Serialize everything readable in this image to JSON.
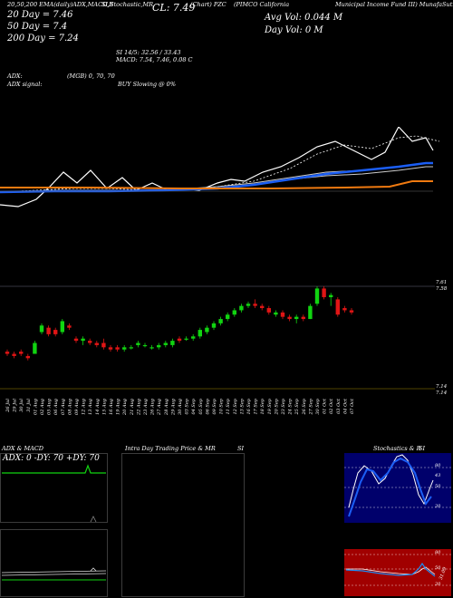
{
  "header": {
    "line1_left": "20,50,200 EMA(daily)ADX,MACD,B",
    "line1_mid": "SI,Stochastic,MR",
    "line1_cl": "CL: 7.49",
    "line1_ticker": "(Chart) PZC",
    "line1_name": "(PIMCO California",
    "line1_muni": "Municipal Income Fund III) MunafaSutra.com",
    "avg_vol": "Avg Vol: 0.044 M",
    "day_vol": "Day Vol: 0 M",
    "ema20": "20 Day = 7.46",
    "ema50": "50 Day = 7.4",
    "ema200": "200 Day = 7.24",
    "stoch_line": "SI 14/5: 32.56 / 33.43",
    "macd_line": "MACD: 7.54, 7.46, 0.08 C",
    "adx_line": "ADX:",
    "adx_values": "(MGB) 0, 70, 70",
    "adx_signal": "ADX signal:",
    "buy_signal": "BUY Slowing @ 0%"
  },
  "price_labels": {
    "top1": "7.61",
    "top2": "7.58",
    "bottom1": "7.14",
    "bottom2": "7.14"
  },
  "dates": [
    "26 Jul",
    "29 Jul",
    "30 Jul",
    "31 Jul",
    "01 Aug",
    "02 Aug",
    "05 Aug",
    "06 Aug",
    "07 Aug",
    "08 Aug",
    "09 Aug",
    "12 Aug",
    "13 Aug",
    "14 Aug",
    "15 Aug",
    "16 Aug",
    "19 Aug",
    "20 Aug",
    "21 Aug",
    "22 Aug",
    "23 Aug",
    "26 Aug",
    "27 Aug",
    "28 Aug",
    "29 Aug",
    "30 Aug",
    "03 Sep",
    "04 Sep",
    "05 Sep",
    "06 Sep",
    "09 Sep",
    "10 Sep",
    "11 Sep",
    "12 Sep",
    "13 Sep",
    "16 Sep",
    "17 Sep",
    "18 Sep",
    "19 Sep",
    "20 Sep",
    "23 Sep",
    "24 Sep",
    "25 Sep",
    "26 Sep",
    "27 Sep",
    "30 Sep",
    "01 Oct",
    "02 Oct",
    "03 Oct",
    "04 Oct",
    "07 Oct"
  ],
  "panels": {
    "adx_title": "ADX  & MACD",
    "adx_values": "ADX: 0  -DY: 70  +DY: 70",
    "mid_title": "Intra Day Trading Price  & MR",
    "mid_si": "SI",
    "stoch_title": "Stochastics & R",
    "stoch_si": "SI",
    "stoch_labels": [
      "80",
      "50",
      "20"
    ],
    "rsi_labels": [
      "80",
      "50",
      "20"
    ],
    "stoch_right": "43",
    "rsi_right": "31.09"
  },
  "colors": {
    "up": "#11d411",
    "down": "#e01515",
    "ema20": "#1b5ef5",
    "ema200": "#f07a10",
    "stoch_bg": "#00006b",
    "rsi_bg": "#a10000"
  },
  "chart_data": {
    "type": "candlestick",
    "ylim": [
      7.14,
      7.61
    ],
    "candles": [
      {
        "o": 7.31,
        "h": 7.32,
        "l": 7.29,
        "c": 7.3
      },
      {
        "o": 7.3,
        "h": 7.31,
        "l": 7.28,
        "c": 7.29
      },
      {
        "o": 7.31,
        "h": 7.32,
        "l": 7.29,
        "c": 7.3
      },
      {
        "o": 7.29,
        "h": 7.3,
        "l": 7.27,
        "c": 7.28
      },
      {
        "o": 7.3,
        "h": 7.36,
        "l": 7.3,
        "c": 7.35
      },
      {
        "o": 7.4,
        "h": 7.44,
        "l": 7.39,
        "c": 7.43
      },
      {
        "o": 7.42,
        "h": 7.43,
        "l": 7.38,
        "c": 7.39
      },
      {
        "o": 7.41,
        "h": 7.42,
        "l": 7.38,
        "c": 7.39
      },
      {
        "o": 7.4,
        "h": 7.46,
        "l": 7.39,
        "c": 7.45
      },
      {
        "o": 7.43,
        "h": 7.44,
        "l": 7.41,
        "c": 7.42
      },
      {
        "o": 7.37,
        "h": 7.38,
        "l": 7.35,
        "c": 7.36
      },
      {
        "o": 7.36,
        "h": 7.38,
        "l": 7.34,
        "c": 7.37
      },
      {
        "o": 7.36,
        "h": 7.37,
        "l": 7.34,
        "c": 7.35
      },
      {
        "o": 7.35,
        "h": 7.36,
        "l": 7.33,
        "c": 7.34
      },
      {
        "o": 7.35,
        "h": 7.37,
        "l": 7.32,
        "c": 7.33
      },
      {
        "o": 7.33,
        "h": 7.34,
        "l": 7.31,
        "c": 7.32
      },
      {
        "o": 7.33,
        "h": 7.34,
        "l": 7.31,
        "c": 7.32
      },
      {
        "o": 7.32,
        "h": 7.34,
        "l": 7.31,
        "c": 7.33
      },
      {
        "o": 7.33,
        "h": 7.34,
        "l": 7.32,
        "c": 7.33
      },
      {
        "o": 7.34,
        "h": 7.36,
        "l": 7.33,
        "c": 7.35
      },
      {
        "o": 7.34,
        "h": 7.35,
        "l": 7.33,
        "c": 7.34
      },
      {
        "o": 7.33,
        "h": 7.34,
        "l": 7.32,
        "c": 7.33
      },
      {
        "o": 7.33,
        "h": 7.35,
        "l": 7.32,
        "c": 7.34
      },
      {
        "o": 7.34,
        "h": 7.36,
        "l": 7.33,
        "c": 7.35
      },
      {
        "o": 7.34,
        "h": 7.37,
        "l": 7.33,
        "c": 7.36
      },
      {
        "o": 7.37,
        "h": 7.38,
        "l": 7.35,
        "c": 7.36
      },
      {
        "o": 7.37,
        "h": 7.38,
        "l": 7.36,
        "c": 7.37
      },
      {
        "o": 7.37,
        "h": 7.39,
        "l": 7.36,
        "c": 7.38
      },
      {
        "o": 7.38,
        "h": 7.42,
        "l": 7.37,
        "c": 7.41
      },
      {
        "o": 7.4,
        "h": 7.43,
        "l": 7.39,
        "c": 7.42
      },
      {
        "o": 7.42,
        "h": 7.45,
        "l": 7.41,
        "c": 7.44
      },
      {
        "o": 7.44,
        "h": 7.47,
        "l": 7.43,
        "c": 7.46
      },
      {
        "o": 7.46,
        "h": 7.49,
        "l": 7.45,
        "c": 7.48
      },
      {
        "o": 7.48,
        "h": 7.51,
        "l": 7.47,
        "c": 7.5
      },
      {
        "o": 7.5,
        "h": 7.53,
        "l": 7.49,
        "c": 7.52
      },
      {
        "o": 7.52,
        "h": 7.54,
        "l": 7.51,
        "c": 7.53
      },
      {
        "o": 7.53,
        "h": 7.55,
        "l": 7.51,
        "c": 7.52
      },
      {
        "o": 7.52,
        "h": 7.53,
        "l": 7.5,
        "c": 7.51
      },
      {
        "o": 7.51,
        "h": 7.52,
        "l": 7.48,
        "c": 7.49
      },
      {
        "o": 7.48,
        "h": 7.5,
        "l": 7.47,
        "c": 7.49
      },
      {
        "o": 7.49,
        "h": 7.5,
        "l": 7.46,
        "c": 7.47
      },
      {
        "o": 7.47,
        "h": 7.48,
        "l": 7.45,
        "c": 7.46
      },
      {
        "o": 7.46,
        "h": 7.48,
        "l": 7.44,
        "c": 7.47
      },
      {
        "o": 7.47,
        "h": 7.48,
        "l": 7.45,
        "c": 7.46
      },
      {
        "o": 7.46,
        "h": 7.53,
        "l": 7.46,
        "c": 7.52
      },
      {
        "o": 7.53,
        "h": 7.61,
        "l": 7.52,
        "c": 7.6
      },
      {
        "o": 7.6,
        "h": 7.61,
        "l": 7.55,
        "c": 7.56
      },
      {
        "o": 7.56,
        "h": 7.58,
        "l": 7.52,
        "c": 7.57
      },
      {
        "o": 7.55,
        "h": 7.56,
        "l": 7.47,
        "c": 7.48
      },
      {
        "o": 7.51,
        "h": 7.52,
        "l": 7.49,
        "c": 7.5
      },
      {
        "o": 7.5,
        "h": 7.51,
        "l": 7.48,
        "c": 7.49
      }
    ]
  }
}
